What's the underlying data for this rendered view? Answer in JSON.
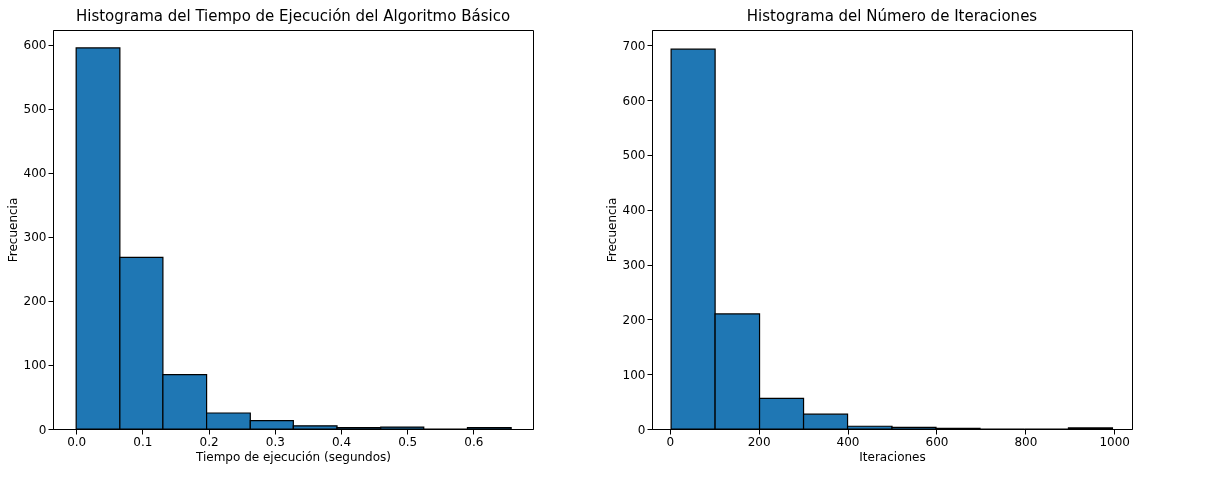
{
  "chart_data": [
    {
      "type": "histogram",
      "title": "Histograma del Tiempo de Ejecución del Algoritmo Básico",
      "xlabel": "Tiempo de ejecución (segundos)",
      "ylabel": "Frecuencia",
      "bins": [
        0.0,
        0.066,
        0.131,
        0.197,
        0.263,
        0.328,
        0.394,
        0.46,
        0.525,
        0.591,
        0.657
      ],
      "values": [
        595,
        268,
        85,
        25,
        13,
        5,
        2,
        3,
        0,
        2
      ],
      "color": "#1f77b4",
      "xlim": [
        -0.035,
        0.69
      ],
      "xticks": [
        {
          "value": 0,
          "label": "0.0"
        },
        0.1,
        0.2,
        0.3,
        0.4,
        0.5,
        0.6
      ],
      "ylim": [
        0,
        623
      ],
      "yticks": [
        0,
        100,
        200,
        300,
        400,
        500,
        600
      ],
      "grid": false
    },
    {
      "type": "histogram",
      "title": "Histograma del Número de Iteraciones",
      "xlabel": "Iteraciones",
      "ylabel": "Frecuencia",
      "bins": [
        3,
        102,
        202,
        301,
        400,
        500,
        599,
        698,
        798,
        897,
        996
      ],
      "values": [
        693,
        210,
        56,
        27,
        5,
        3,
        1,
        0,
        0,
        2
      ],
      "color": "#1f77b4",
      "xlim": [
        -40,
        1040
      ],
      "xticks": [
        0,
        200,
        400,
        600,
        800,
        1000
      ],
      "ylim": [
        0,
        728
      ],
      "yticks": [
        0,
        100,
        200,
        300,
        400,
        500,
        600,
        700
      ],
      "grid": false
    }
  ]
}
